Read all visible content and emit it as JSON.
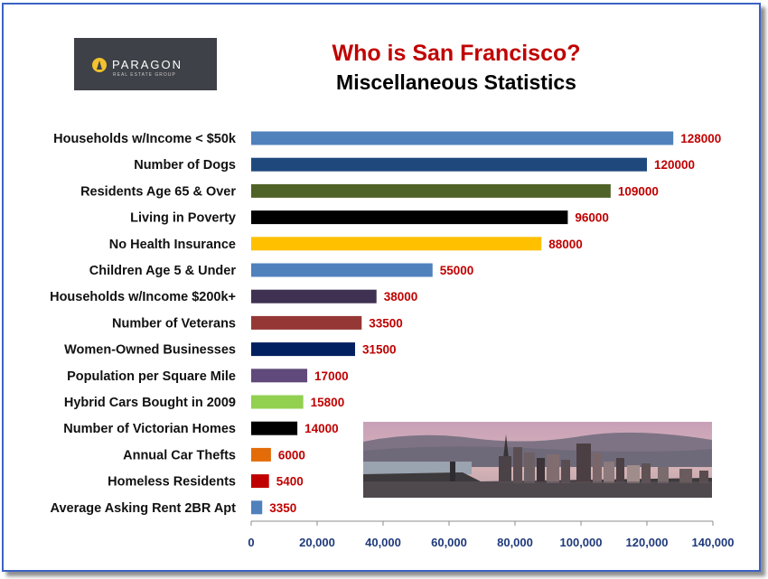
{
  "logo": {
    "name": "PARAGON",
    "tagline": "REAL ESTATE GROUP"
  },
  "header": {
    "title": "Who is San Francisco?",
    "subtitle": "Miscellaneous Statistics"
  },
  "colors": {
    "title": "#c00000",
    "value_labels": "#c00000",
    "tick_labels": "#1f3a7a"
  },
  "photo": {
    "subject": "san-francisco-skyline"
  },
  "chart_data": {
    "type": "bar",
    "orientation": "horizontal",
    "categories": [
      "Households w/Income < $50k",
      "Number of Dogs",
      "Residents Age 65 & Over",
      "Living in Poverty",
      "No Health Insurance",
      "Children Age 5 & Under",
      "Households w/Income $200k+",
      "Number of Veterans",
      "Women-Owned Businesses",
      "Population per Square Mile",
      "Hybrid Cars Bought in 2009",
      "Number of Victorian Homes",
      "Annual Car Thefts",
      "Homeless Residents",
      "Average Asking Rent 2BR Apt"
    ],
    "values": [
      128000,
      120000,
      109000,
      96000,
      88000,
      55000,
      38000,
      33500,
      31500,
      17000,
      15800,
      14000,
      6000,
      5400,
      3350
    ],
    "value_labels": [
      "128000",
      "120000",
      "109000",
      "96000",
      "88000",
      "55000",
      "38000",
      "33500",
      "31500",
      "17000",
      "15800",
      "14000",
      "6000",
      "5400",
      "3350"
    ],
    "bar_colors": [
      "#4f81bd",
      "#1f497d",
      "#4f6228",
      "#000000",
      "#ffc000",
      "#4f81bd",
      "#3f3151",
      "#953735",
      "#002060",
      "#604a7b",
      "#92d050",
      "#000000",
      "#e36c09",
      "#c00000",
      "#4f81bd"
    ],
    "xlim": [
      0,
      140000
    ],
    "x_ticks": [
      0,
      20000,
      40000,
      60000,
      80000,
      100000,
      120000,
      140000
    ],
    "x_tick_labels": [
      "0",
      "20,000",
      "40,000",
      "60,000",
      "80,000",
      "100,000",
      "120,000",
      "140,000"
    ],
    "grid": false,
    "legend": "none"
  }
}
